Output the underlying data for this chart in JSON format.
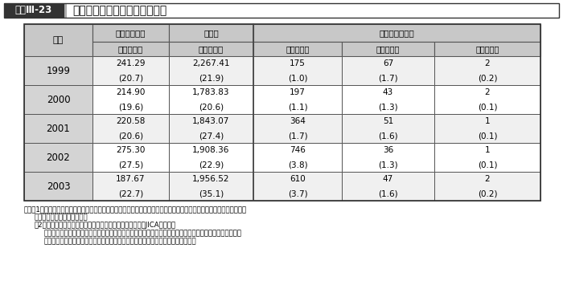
{
  "title_label": "図表Ⅲ-23",
  "title_main": "水と衛生分野における援助実績",
  "header_row1_year": "年度",
  "header_row1_c1": "無償資金協力",
  "header_row1_c2": "円借歊",
  "header_row1_tech": "技術協力（人）",
  "header_row2_c1": "（億　円）",
  "header_row2_c2": "（億　円）",
  "header_row2_c3": "研修員受入",
  "header_row2_c4": "専門家派遣",
  "header_row2_c5": "協力隊派遣",
  "years": [
    "1999",
    "2000",
    "2001",
    "2002",
    "2003"
  ],
  "col1_main": [
    "241.29",
    "214.90",
    "220.58",
    "275.30",
    "187.67"
  ],
  "col1_sub": [
    "(20.7)",
    "(19.6)",
    "(20.6)",
    "(27.5)",
    "(22.7)"
  ],
  "col2_main": [
    "2,267.41",
    "1,783.83",
    "1,843.07",
    "1,908.36",
    "1,956.52"
  ],
  "col2_sub": [
    "(21.9)",
    "(20.6)",
    "(27.4)",
    "(22.9)",
    "(35.1)"
  ],
  "col3_main": [
    "175",
    "197",
    "364",
    "746",
    "610"
  ],
  "col3_sub": [
    "(1.0)",
    "(1.1)",
    "(1.7)",
    "(3.8)",
    "(3.7)"
  ],
  "col4_main": [
    "67",
    "43",
    "51",
    "36",
    "47"
  ],
  "col4_sub": [
    "(1.7)",
    "(1.3)",
    "(1.6)",
    "(1.3)",
    "(1.6)"
  ],
  "col5_main": [
    "2",
    "2",
    "1",
    "1",
    "2"
  ],
  "col5_sub": [
    "(0.2)",
    "(0.1)",
    "(0.1)",
    "(0.1)",
    "(0.2)"
  ],
  "note_line1": "注：（1）（　）内は一般プロジェクト無償全体、または円借歊全体（債務救済を除く）に占める割合（％）、技術協力",
  "note_line2": "は全体に占める割合（％）。",
  "note_line3": "（2）無償資金協力、円借歊は交換公文ベース、技術協力はJICAベース。",
  "note_line4": "尺し、技術協力の人数については、上水道、下水道分野の人数を集計したものであり、また、有償・無償資",
  "note_line5": "金協力の案件の中には、さらに洪水対策、灌潑、水力発電、砂漠化防止等を含む。",
  "header_bg": "#c8c8c8",
  "year_bg": "#d4d4d4",
  "row_bg_even": "#f0f0f0",
  "row_bg_odd": "#ffffff",
  "title_label_bg": "#333333",
  "title_label_fg": "#ffffff",
  "border_dark": "#555555",
  "border_light": "#888888"
}
